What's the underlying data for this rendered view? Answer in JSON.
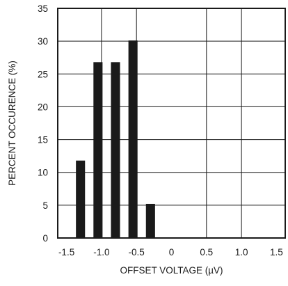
{
  "chart_data": {
    "type": "bar",
    "xlabel": "OFFSET VOLTAGE (µV)",
    "ylabel": "PERCENT OCCURENCE (%)",
    "xlim": [
      -1.625,
      1.625
    ],
    "ylim": [
      0,
      35
    ],
    "grid": true,
    "x_ticks": [
      {
        "value": -1.5,
        "label": "-1.5"
      },
      {
        "value": -1.0,
        "label": "-1.0"
      },
      {
        "value": -0.5,
        "label": "-0.5"
      },
      {
        "value": 0,
        "label": "0"
      },
      {
        "value": 0.5,
        "label": "0.5"
      },
      {
        "value": 1.0,
        "label": "1.0"
      },
      {
        "value": 1.5,
        "label": "1.5"
      }
    ],
    "y_ticks": [
      {
        "value": 0,
        "label": "0"
      },
      {
        "value": 5,
        "label": "5"
      },
      {
        "value": 10,
        "label": "10"
      },
      {
        "value": 15,
        "label": "15"
      },
      {
        "value": 20,
        "label": "20"
      },
      {
        "value": 25,
        "label": "25"
      },
      {
        "value": 30,
        "label": "30"
      },
      {
        "value": 35,
        "label": "35"
      }
    ],
    "vertical_gridlines": [
      -1.0,
      -0.5,
      0.5,
      1.0
    ],
    "bar_width": 0.13,
    "bars": [
      {
        "x": -1.3,
        "value": 11.8
      },
      {
        "x": -1.05,
        "value": 26.8
      },
      {
        "x": -0.8,
        "value": 26.8
      },
      {
        "x": -0.55,
        "value": 30.1
      },
      {
        "x": -0.3,
        "value": 5.2
      }
    ],
    "colors": {
      "bar": "#1a1a1a",
      "axis": "#1a1a1a",
      "grid": "#1a1a1a"
    }
  }
}
